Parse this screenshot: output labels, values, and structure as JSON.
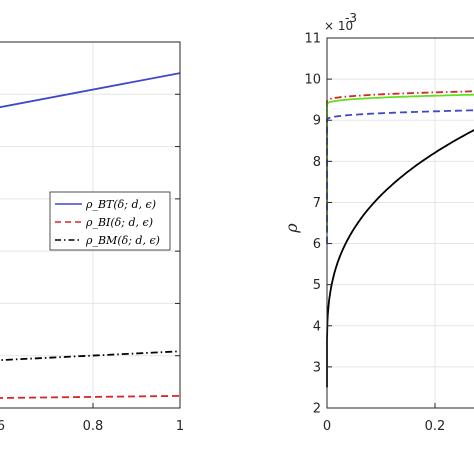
{
  "chart_data": [
    {
      "type": "line",
      "title": "",
      "xlabel": "",
      "ylabel": "",
      "xlim": [
        0.4,
        1
      ],
      "xticks": [
        0.8,
        1
      ],
      "xtick_labels": [
        "0.8",
        "1"
      ],
      "grid": true,
      "legend_position": "right",
      "series": [
        {
          "name": "ρ_BT(δ; d, ϵ)",
          "color": "#3f48c8",
          "style": "solid",
          "x": [
            0.4,
            1.0
          ],
          "y": [
            0.78,
            0.915
          ]
        },
        {
          "name": "ρ_BI(δ; d, ϵ)",
          "color": "#d62728",
          "style": "dashed",
          "x": [
            0.4,
            1.0
          ],
          "y": [
            0.025,
            0.033
          ]
        },
        {
          "name": "ρ_BM(δ; d, ϵ)",
          "color": "#000000",
          "style": "dashdot",
          "x": [
            0.4,
            1.0
          ],
          "y": [
            0.12,
            0.155
          ]
        }
      ]
    },
    {
      "type": "line",
      "title": "",
      "xlabel": "",
      "ylabel": "ρ",
      "y_exponent_base": "× 10",
      "y_exponent_power": "-3",
      "xlim": [
        0,
        0.45
      ],
      "ylim": [
        2,
        11
      ],
      "xticks": [
        0,
        0.2
      ],
      "xtick_labels": [
        "0",
        "0.2"
      ],
      "yticks": [
        2,
        3,
        4,
        5,
        6,
        7,
        8,
        9,
        10,
        11
      ],
      "ytick_labels": [
        "2",
        "3",
        "4",
        "5",
        "6",
        "7",
        "8",
        "9",
        "10",
        "11"
      ],
      "grid": true,
      "series": [
        {
          "color": "#d62728",
          "style": "dashdot",
          "curve": {
            "a": 9.45,
            "b": 0.4,
            "p": 0.35,
            "start": 6.5
          }
        },
        {
          "color": "#66dd22",
          "style": "solid",
          "curve": {
            "a": 9.38,
            "b": 0.38,
            "p": 0.35,
            "start": 6.3
          }
        },
        {
          "color": "#3f48c8",
          "style": "dashed",
          "curve": {
            "a": 9.0,
            "b": 0.38,
            "p": 0.35,
            "start": 6.0
          }
        },
        {
          "color": "#000000",
          "style": "solid",
          "curve": {
            "a": 3.4,
            "b": 1.3,
            "p": 0.35,
            "start": 2.5
          }
        }
      ]
    }
  ]
}
